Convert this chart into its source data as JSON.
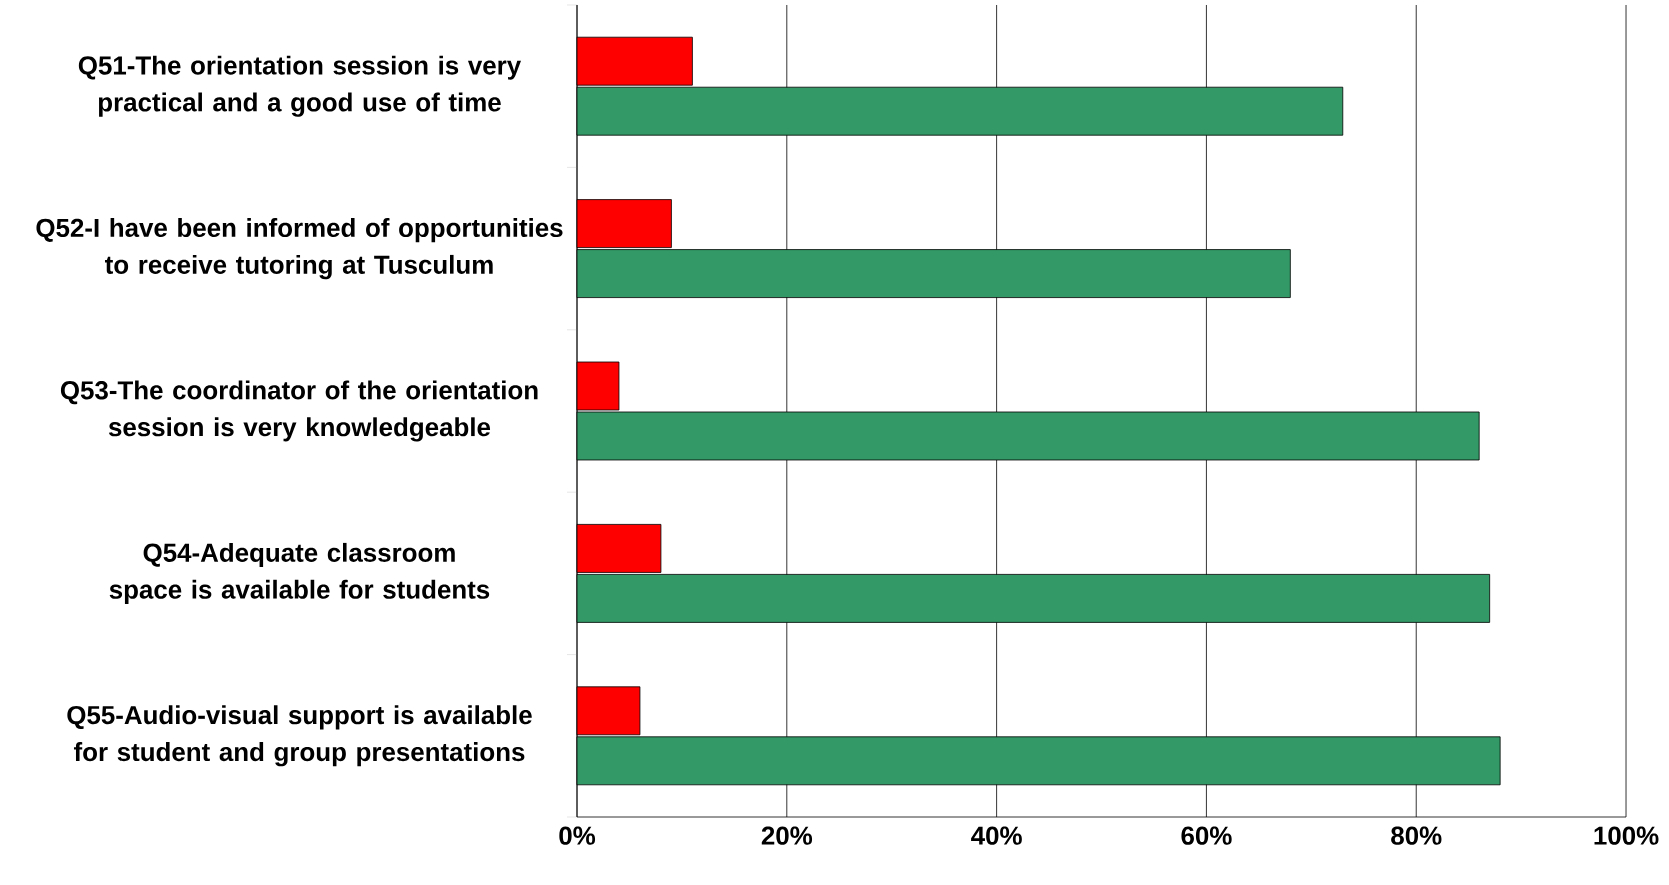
{
  "chart_data": {
    "type": "bar",
    "orientation": "horizontal",
    "categories": [
      "Q51-The orientation session is very practical and a good use of time",
      "Q52-I have been informed of opportunities to receive tutoring at Tusculum",
      "Q53-The coordinator of the orientation session is very knowledgeable",
      "Q54-Adequate classroom space is available for students",
      "Q55-Audio-visual support is available for student and group presentations"
    ],
    "series": [
      {
        "color": "#339966",
        "values": [
          73,
          68,
          86,
          87,
          88
        ]
      },
      {
        "color": "#ff0000",
        "values": [
          11,
          9,
          4,
          8,
          6
        ]
      }
    ],
    "xlim": [
      0,
      100
    ],
    "xticks": [
      {
        "value": 0,
        "label": "0%"
      },
      {
        "value": 20,
        "label": "20%"
      },
      {
        "value": 40,
        "label": "40%"
      },
      {
        "value": 60,
        "label": "60%"
      },
      {
        "value": 80,
        "label": "80%"
      },
      {
        "value": 100,
        "label": "100%"
      }
    ],
    "grid": "x"
  }
}
